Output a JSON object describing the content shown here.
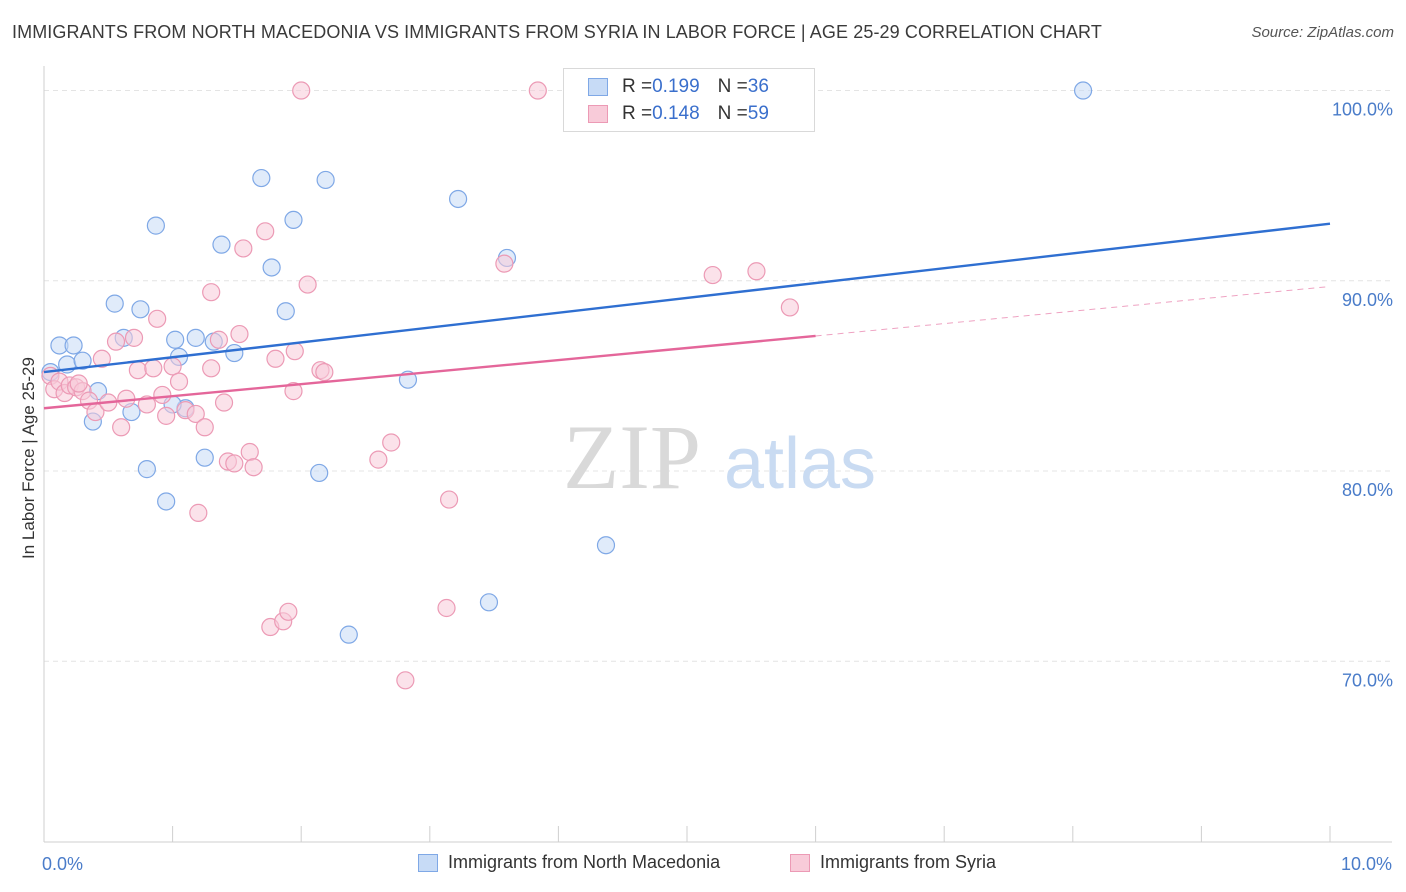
{
  "title": "IMMIGRANTS FROM NORTH MACEDONIA VS IMMIGRANTS FROM SYRIA IN LABOR FORCE | AGE 25-29 CORRELATION CHART",
  "source": "Source: ZipAtlas.com",
  "watermark": {
    "zip": "ZIP",
    "atlas": "atlas"
  },
  "legend": {
    "rows": [
      {
        "r_label": "R = ",
        "r_value": "0.199",
        "n_label": "N = ",
        "n_value": "36"
      },
      {
        "r_label": "R = ",
        "r_value": "0.148",
        "n_label": "N = ",
        "n_value": "59"
      }
    ]
  },
  "chart_data": {
    "type": "scatter",
    "xlabel": "",
    "ylabel": "In Labor Force | Age 25-29",
    "xlim": [
      0,
      10
    ],
    "ylim": [
      60.5,
      101.5
    ],
    "x_tick_labels": [
      {
        "value": 0,
        "label": "0.0%"
      },
      {
        "value": 10,
        "label": "10.0%"
      }
    ],
    "y_tick_labels": [
      {
        "value": 100,
        "label": "100.0%"
      },
      {
        "value": 90,
        "label": "90.0%"
      },
      {
        "value": 80,
        "label": "80.0%"
      },
      {
        "value": 70,
        "label": "70.0%"
      }
    ],
    "x_minor_ticks": [
      0,
      1,
      2,
      3,
      4,
      5,
      6,
      7,
      8,
      9,
      10
    ],
    "grid": true,
    "legend_position": "top-center",
    "series": [
      {
        "name": "Immigrants from North Macedonia",
        "color": "#7fa8e6",
        "fill": "#c7dbf6",
        "line_color": "#2f6fd1",
        "trend": {
          "x": [
            0,
            10
          ],
          "y": [
            85.2,
            93.0
          ]
        },
        "points": [
          [
            0.05,
            85.2
          ],
          [
            0.12,
            86.6
          ],
          [
            0.18,
            85.6
          ],
          [
            0.23,
            86.6
          ],
          [
            0.3,
            85.8
          ],
          [
            0.38,
            82.6
          ],
          [
            0.42,
            84.2
          ],
          [
            0.55,
            88.8
          ],
          [
            0.62,
            87.0
          ],
          [
            0.68,
            83.1
          ],
          [
            0.75,
            88.5
          ],
          [
            0.8,
            80.1
          ],
          [
            0.87,
            92.9
          ],
          [
            0.95,
            78.4
          ],
          [
            1.02,
            86.9
          ],
          [
            1.05,
            86.0
          ],
          [
            1.1,
            83.3
          ],
          [
            1.18,
            87.0
          ],
          [
            1.25,
            80.7
          ],
          [
            1.32,
            86.8
          ],
          [
            1.38,
            91.9
          ],
          [
            1.48,
            86.2
          ],
          [
            1.69,
            95.4
          ],
          [
            1.77,
            90.7
          ],
          [
            1.88,
            88.4
          ],
          [
            1.94,
            93.2
          ],
          [
            2.14,
            79.9
          ],
          [
            2.19,
            95.3
          ],
          [
            2.37,
            71.4
          ],
          [
            2.83,
            84.8
          ],
          [
            3.22,
            94.3
          ],
          [
            3.46,
            73.1
          ],
          [
            3.6,
            91.2
          ],
          [
            4.37,
            76.1
          ],
          [
            8.08,
            100.0
          ],
          [
            1.0,
            83.5
          ]
        ]
      },
      {
        "name": "Immigrants from Syria",
        "color": "#ec9ab5",
        "fill": "#f8cbd9",
        "line_color": "#e4669a",
        "trend": {
          "x": [
            0,
            6.0
          ],
          "y": [
            83.3,
            87.1
          ]
        },
        "trend_dashed": {
          "x": [
            6.0,
            10
          ],
          "y": [
            87.1,
            89.7
          ]
        },
        "points": [
          [
            0.05,
            85.0
          ],
          [
            0.08,
            84.3
          ],
          [
            0.12,
            84.7
          ],
          [
            0.16,
            84.1
          ],
          [
            0.2,
            84.5
          ],
          [
            0.25,
            84.4
          ],
          [
            0.3,
            84.2
          ],
          [
            0.35,
            83.7
          ],
          [
            0.4,
            83.1
          ],
          [
            0.45,
            85.9
          ],
          [
            0.5,
            83.6
          ],
          [
            0.56,
            86.8
          ],
          [
            0.6,
            82.3
          ],
          [
            0.64,
            83.8
          ],
          [
            0.7,
            87.0
          ],
          [
            0.73,
            85.3
          ],
          [
            0.8,
            83.5
          ],
          [
            0.85,
            85.4
          ],
          [
            0.88,
            88.0
          ],
          [
            0.92,
            84.0
          ],
          [
            0.95,
            82.9
          ],
          [
            1.0,
            85.5
          ],
          [
            1.05,
            84.7
          ],
          [
            1.1,
            83.2
          ],
          [
            1.18,
            83.0
          ],
          [
            1.2,
            77.8
          ],
          [
            1.25,
            82.3
          ],
          [
            1.3,
            85.4
          ],
          [
            1.3,
            89.4
          ],
          [
            1.36,
            86.9
          ],
          [
            1.4,
            83.6
          ],
          [
            1.43,
            80.5
          ],
          [
            1.48,
            80.4
          ],
          [
            1.52,
            87.2
          ],
          [
            1.55,
            91.7
          ],
          [
            1.6,
            81.0
          ],
          [
            1.63,
            80.2
          ],
          [
            1.72,
            92.6
          ],
          [
            1.76,
            71.8
          ],
          [
            1.8,
            85.9
          ],
          [
            1.86,
            72.1
          ],
          [
            1.9,
            72.6
          ],
          [
            1.94,
            84.2
          ],
          [
            1.95,
            86.3
          ],
          [
            2.0,
            100.0
          ],
          [
            2.05,
            89.8
          ],
          [
            2.15,
            85.3
          ],
          [
            2.18,
            85.2
          ],
          [
            2.6,
            80.6
          ],
          [
            2.7,
            81.5
          ],
          [
            2.81,
            69.0
          ],
          [
            3.15,
            78.5
          ],
          [
            3.13,
            72.8
          ],
          [
            3.58,
            90.9
          ],
          [
            3.84,
            100.0
          ],
          [
            5.2,
            90.3
          ],
          [
            5.54,
            90.5
          ],
          [
            5.8,
            88.6
          ],
          [
            0.27,
            84.6
          ]
        ]
      }
    ]
  }
}
